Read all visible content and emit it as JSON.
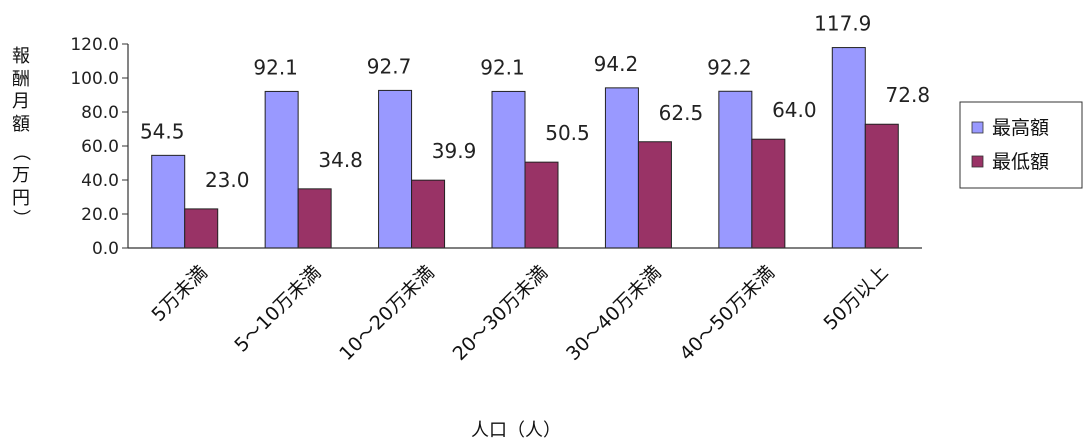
{
  "chart_data": {
    "type": "bar",
    "title": "",
    "xlabel": "人口（人）",
    "ylabel": [
      "報",
      "酬",
      "月",
      "額",
      "（",
      "万",
      "円",
      "）"
    ],
    "categories": [
      "5万未満",
      "5～10万未満",
      "10～20万未満",
      "20～30万未満",
      "30～40万未満",
      "40～50万未満",
      "50万以上"
    ],
    "series": [
      {
        "name": "最高額",
        "values": [
          54.5,
          92.1,
          92.7,
          92.1,
          94.2,
          92.2,
          117.9
        ],
        "color": "#9999ff"
      },
      {
        "name": "最低額",
        "values": [
          23.0,
          34.8,
          39.9,
          50.5,
          62.5,
          64.0,
          72.8
        ],
        "color": "#993366"
      }
    ],
    "data_labels": [
      [
        "54.5",
        "92.1",
        "92.7",
        "92.1",
        "94.2",
        "92.2",
        "117.9"
      ],
      [
        "23.0",
        "34.8",
        "39.9",
        "50.5",
        "62.5",
        "64.0",
        "72.8"
      ]
    ],
    "ylim": [
      0,
      120
    ],
    "yticks": [
      "0.0",
      "20.0",
      "40.0",
      "60.0",
      "80.0",
      "100.0",
      "120.0"
    ],
    "grid": false,
    "legend_position": "right"
  }
}
